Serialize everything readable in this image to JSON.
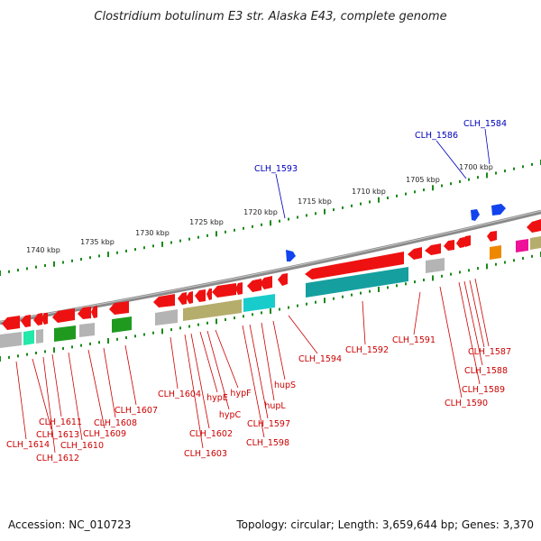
{
  "title": "Clostridium botulinum E3 str. Alaska E43, complete genome",
  "footer": {
    "accession": "Accession: NC_010723",
    "topology": "Topology: circular; Length: 3,659,644 bp; Genes: 3,370"
  },
  "scale_ticks": [
    "1740 kbp",
    "1735 kbp",
    "1730 kbp",
    "1725 kbp",
    "1720 kbp",
    "1715 kbp",
    "1710 kbp",
    "1705 kbp",
    "1700 kbp"
  ],
  "colors": {
    "backbone": "#8a8a8a",
    "tick": "#1a8a1a",
    "label_red": "#cc0000",
    "label_blue": "#0000bb",
    "gene_red": "#ee1111",
    "gene_blue": "#1144ee",
    "gene_gray": "#b4b4b4",
    "gene_olive": "#b5ad6c",
    "gene_cyan": "#19cccc",
    "gene_teal": "#169f9f",
    "gene_green": "#1f9a1f",
    "gene_magenta": "#ee1199",
    "gene_orange": "#ee8800",
    "gene_spring": "#22e8aa"
  },
  "labels_blue": [
    "CLH_1593",
    "CLH_1586",
    "CLH_1584"
  ],
  "labels_red": [
    "CLH_1614",
    "CLH_1613",
    "CLH_1612",
    "CLH_1611",
    "CLH_1610",
    "CLH_1609",
    "CLH_1608",
    "CLH_1607",
    "CLH_1604",
    "CLH_1603",
    "CLH_1602",
    "hypE",
    "hypC",
    "hypF",
    "CLH_1598",
    "CLH_1597",
    "hupL",
    "hupS",
    "CLH_1594",
    "CLH_1592",
    "CLH_1591",
    "CLH_1590",
    "CLH_1589",
    "CLH_1588",
    "CLH_1587"
  ]
}
